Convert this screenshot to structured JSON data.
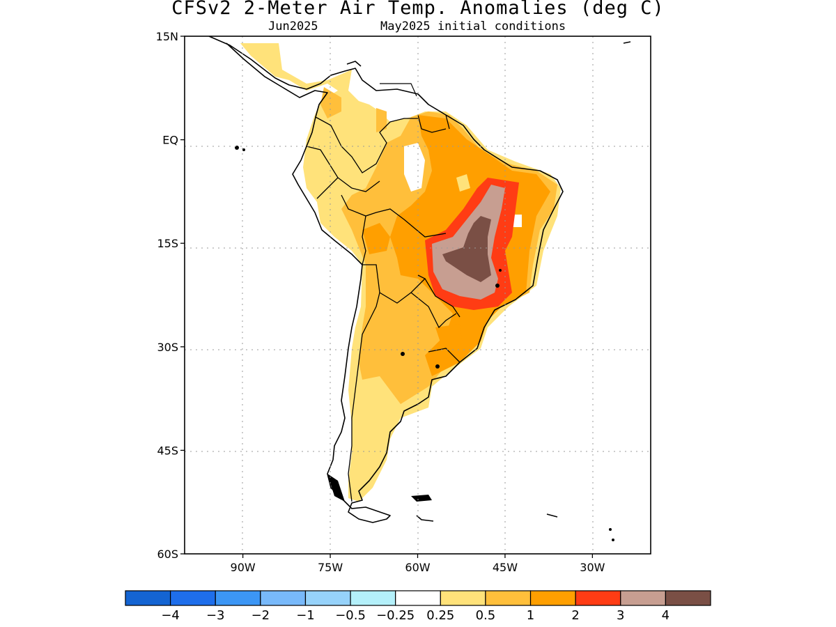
{
  "header": {
    "title": "CFSv2 2-Meter Air Temp. Anomalies (deg C)",
    "valid_month": "Jun2025",
    "initial_conditions": "May2025 initial conditions"
  },
  "map": {
    "region": "South America",
    "lon_range": [
      -100,
      -20
    ],
    "lat_range": [
      -60,
      15
    ],
    "lat_ticks": [
      {
        "value": 15,
        "label": "15N"
      },
      {
        "value": 0,
        "label": "EQ"
      },
      {
        "value": -15,
        "label": "15S"
      },
      {
        "value": -30,
        "label": "30S"
      },
      {
        "value": -45,
        "label": "45S"
      },
      {
        "value": -60,
        "label": "60S"
      }
    ],
    "lon_ticks": [
      {
        "value": -90,
        "label": "90W"
      },
      {
        "value": -75,
        "label": "75W"
      },
      {
        "value": -60,
        "label": "60W"
      },
      {
        "value": -45,
        "label": "45W"
      },
      {
        "value": -30,
        "label": "30W"
      }
    ],
    "grid": "dotted",
    "anomaly_regions": [
      {
        "level": "0.25 to 0.5",
        "color": "#ffe27a",
        "area": "southern Andes / Patagonia / central Colombia / northwest Brazil"
      },
      {
        "level": "0.5 to 1",
        "color": "#ffbf3b",
        "area": "Argentina, Bolivia, Paraguay, Amazon basin"
      },
      {
        "level": "1 to 2",
        "color": "#ff9f00",
        "area": "central and northeast Brazil, Uruguay"
      },
      {
        "level": "2 to 3",
        "color": "#ff3c14",
        "area": "rim around central Brazil maximum"
      },
      {
        "level": "3 to 4",
        "color": "#c79e91",
        "area": "central Brazil plateau"
      },
      {
        "level": "> 4",
        "color": "#7a4f45",
        "area": "core over Goias / Minas Gerais"
      }
    ]
  },
  "colorbar": {
    "colors": [
      "#1464d2",
      "#1e6eeb",
      "#3c96f5",
      "#78b9fa",
      "#96d2fa",
      "#b4f0fa",
      "#ffffff",
      "#ffe27a",
      "#ffbf3b",
      "#ff9f00",
      "#ff3c14",
      "#c79e91",
      "#7a4f45"
    ],
    "labels": [
      "−4",
      "−3",
      "−2",
      "−1",
      "−0.5",
      "−0.25",
      "0.25",
      "0.5",
      "1",
      "2",
      "3",
      "4"
    ]
  }
}
